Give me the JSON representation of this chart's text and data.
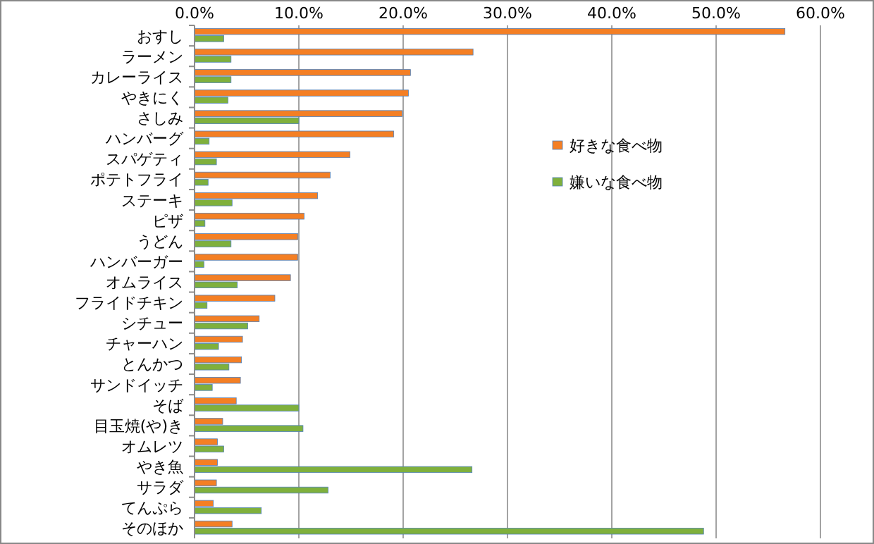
{
  "chart_data": {
    "type": "bar",
    "orientation": "horizontal",
    "categories": [
      "おすし",
      "ラーメン",
      "カレーライス",
      "やきにく",
      "さしみ",
      "ハンバーグ",
      "スパゲティ",
      "ポテトフライ",
      "ステーキ",
      "ピザ",
      "うどん",
      "ハンバーガー",
      "オムライス",
      "フライドチキン",
      "シチュー",
      "チャーハン",
      "とんかつ",
      "サンドイッチ",
      "そば",
      "目玉焼(や)き",
      "オムレツ",
      "やき魚",
      "サラダ",
      "てんぷら",
      "そのほか"
    ],
    "series": [
      {
        "name": "好きな食べ物",
        "color": "#f47f24",
        "values": [
          56.6,
          26.7,
          20.7,
          20.5,
          19.9,
          19.1,
          14.9,
          13.0,
          11.8,
          10.5,
          9.9,
          9.9,
          9.2,
          7.7,
          6.2,
          4.6,
          4.5,
          4.4,
          4.0,
          2.7,
          2.2,
          2.2,
          2.1,
          1.8,
          3.6
        ]
      },
      {
        "name": "嫌いな食べ物",
        "color": "#7fb03c",
        "values": [
          2.8,
          3.5,
          3.5,
          3.2,
          10.0,
          1.4,
          2.1,
          1.3,
          3.6,
          1.0,
          3.5,
          0.9,
          4.1,
          1.2,
          5.1,
          2.3,
          3.3,
          1.7,
          10.0,
          10.4,
          2.8,
          26.6,
          12.8,
          6.4,
          48.8
        ]
      }
    ],
    "xlim": [
      0,
      60
    ],
    "xticks": [
      {
        "value": 0,
        "label": "0.0%"
      },
      {
        "value": 10,
        "label": "10.0%"
      },
      {
        "value": 20,
        "label": "20.0%"
      },
      {
        "value": 30,
        "label": "30.0%"
      },
      {
        "value": 40,
        "label": "40.0%"
      },
      {
        "value": 50,
        "label": "50.0%"
      },
      {
        "value": 60,
        "label": "60.0%"
      }
    ],
    "grid": "x",
    "legend": "right"
  }
}
